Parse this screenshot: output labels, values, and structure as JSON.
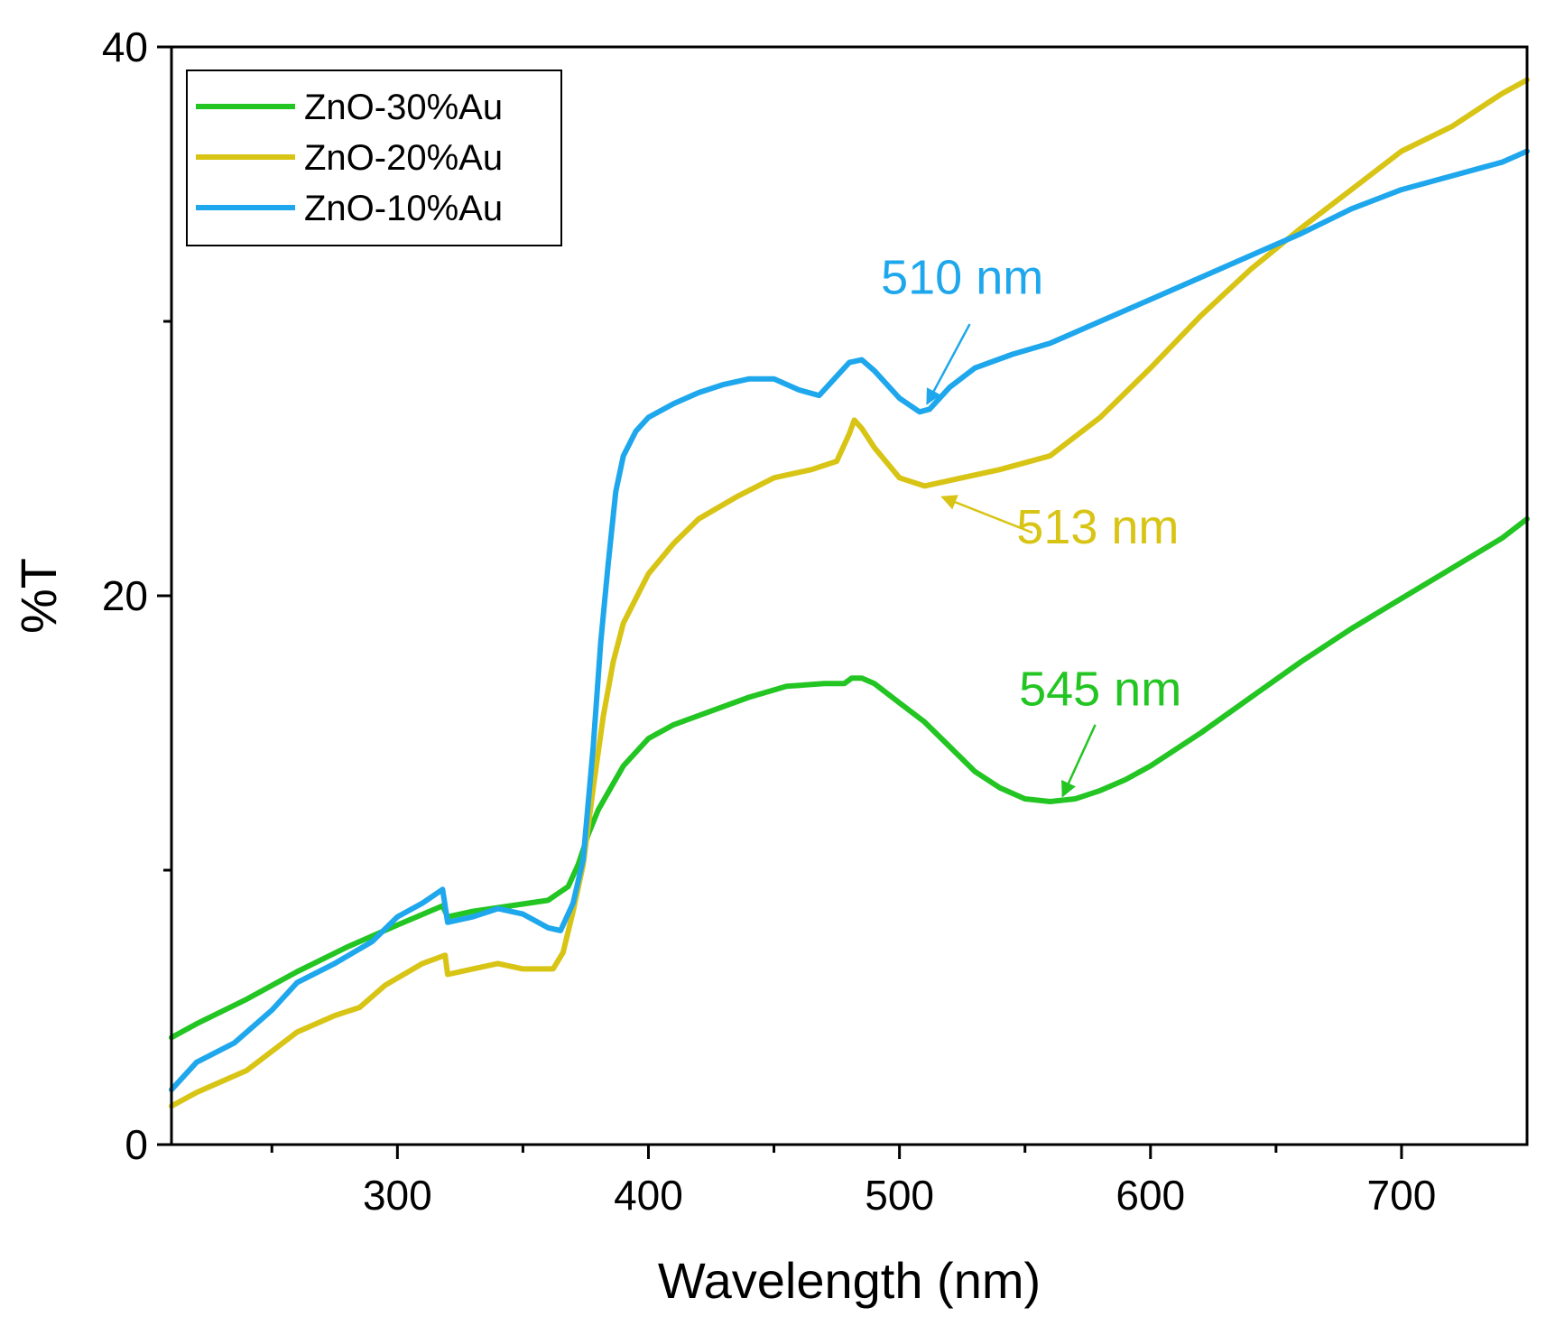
{
  "chart_data": {
    "type": "line",
    "title": "",
    "xlabel": "Wavelength (nm)",
    "ylabel": "%T",
    "xlim": [
      210,
      750
    ],
    "ylim": [
      0,
      40
    ],
    "x_ticks": [
      300,
      400,
      500,
      600,
      700
    ],
    "x_tick_labels": [
      "300",
      "400",
      "500",
      "600",
      "700"
    ],
    "x_minor_ticks": [
      250,
      350,
      450,
      550,
      650
    ],
    "y_ticks": [
      0,
      20,
      40
    ],
    "y_tick_labels": [
      "0",
      "20",
      "40"
    ],
    "y_minor_ticks": [
      10,
      30
    ],
    "grid": false,
    "legend_position": "top-left",
    "series": [
      {
        "name": "ZnO-30%Au",
        "color": "#22c522",
        "points": [
          [
            210,
            3.9
          ],
          [
            220,
            4.4
          ],
          [
            240,
            5.3
          ],
          [
            260,
            6.3
          ],
          [
            280,
            7.2
          ],
          [
            300,
            8.0
          ],
          [
            318,
            8.7
          ],
          [
            320,
            8.3
          ],
          [
            330,
            8.5
          ],
          [
            345,
            8.7
          ],
          [
            360,
            8.9
          ],
          [
            368,
            9.4
          ],
          [
            372,
            10.2
          ],
          [
            376,
            11.3
          ],
          [
            380,
            12.2
          ],
          [
            385,
            13.0
          ],
          [
            390,
            13.8
          ],
          [
            400,
            14.8
          ],
          [
            410,
            15.3
          ],
          [
            425,
            15.8
          ],
          [
            440,
            16.3
          ],
          [
            455,
            16.7
          ],
          [
            470,
            16.8
          ],
          [
            478,
            16.8
          ],
          [
            481,
            17.0
          ],
          [
            485,
            17.0
          ],
          [
            490,
            16.8
          ],
          [
            500,
            16.1
          ],
          [
            510,
            15.4
          ],
          [
            520,
            14.5
          ],
          [
            530,
            13.6
          ],
          [
            540,
            13.0
          ],
          [
            550,
            12.6
          ],
          [
            560,
            12.5
          ],
          [
            570,
            12.6
          ],
          [
            580,
            12.9
          ],
          [
            590,
            13.3
          ],
          [
            600,
            13.8
          ],
          [
            620,
            15.0
          ],
          [
            640,
            16.3
          ],
          [
            660,
            17.6
          ],
          [
            680,
            18.8
          ],
          [
            700,
            19.9
          ],
          [
            720,
            21.0
          ],
          [
            740,
            22.1
          ],
          [
            750,
            22.8
          ]
        ]
      },
      {
        "name": "ZnO-20%Au",
        "color": "#d8c414",
        "points": [
          [
            210,
            1.4
          ],
          [
            220,
            1.9
          ],
          [
            240,
            2.7
          ],
          [
            250,
            3.4
          ],
          [
            260,
            4.1
          ],
          [
            275,
            4.7
          ],
          [
            285,
            5.0
          ],
          [
            295,
            5.8
          ],
          [
            310,
            6.6
          ],
          [
            319,
            6.9
          ],
          [
            320,
            6.2
          ],
          [
            330,
            6.4
          ],
          [
            340,
            6.6
          ],
          [
            350,
            6.4
          ],
          [
            362,
            6.4
          ],
          [
            366,
            7.0
          ],
          [
            370,
            8.5
          ],
          [
            374,
            10.2
          ],
          [
            378,
            13.0
          ],
          [
            382,
            15.6
          ],
          [
            386,
            17.6
          ],
          [
            390,
            19.0
          ],
          [
            400,
            20.8
          ],
          [
            410,
            21.9
          ],
          [
            420,
            22.8
          ],
          [
            435,
            23.6
          ],
          [
            450,
            24.3
          ],
          [
            465,
            24.6
          ],
          [
            475,
            24.9
          ],
          [
            480,
            25.9
          ],
          [
            482,
            26.4
          ],
          [
            485,
            26.1
          ],
          [
            490,
            25.4
          ],
          [
            500,
            24.3
          ],
          [
            510,
            24.0
          ],
          [
            520,
            24.2
          ],
          [
            540,
            24.6
          ],
          [
            560,
            25.1
          ],
          [
            580,
            26.5
          ],
          [
            600,
            28.3
          ],
          [
            620,
            30.2
          ],
          [
            640,
            31.9
          ],
          [
            660,
            33.4
          ],
          [
            680,
            34.8
          ],
          [
            700,
            36.2
          ],
          [
            720,
            37.1
          ],
          [
            740,
            38.3
          ],
          [
            750,
            38.8
          ]
        ]
      },
      {
        "name": "ZnO-10%Au",
        "color": "#1ea7ec",
        "points": [
          [
            210,
            2.0
          ],
          [
            220,
            3.0
          ],
          [
            235,
            3.7
          ],
          [
            250,
            4.9
          ],
          [
            260,
            5.9
          ],
          [
            275,
            6.6
          ],
          [
            290,
            7.4
          ],
          [
            300,
            8.3
          ],
          [
            310,
            8.8
          ],
          [
            318,
            9.3
          ],
          [
            320,
            8.1
          ],
          [
            330,
            8.3
          ],
          [
            340,
            8.6
          ],
          [
            350,
            8.4
          ],
          [
            360,
            7.9
          ],
          [
            365,
            7.8
          ],
          [
            370,
            8.8
          ],
          [
            374,
            10.4
          ],
          [
            378,
            14.5
          ],
          [
            381,
            18.3
          ],
          [
            384,
            21.2
          ],
          [
            387,
            23.8
          ],
          [
            390,
            25.1
          ],
          [
            395,
            26.0
          ],
          [
            400,
            26.5
          ],
          [
            410,
            27.0
          ],
          [
            420,
            27.4
          ],
          [
            430,
            27.7
          ],
          [
            440,
            27.9
          ],
          [
            450,
            27.9
          ],
          [
            460,
            27.5
          ],
          [
            468,
            27.3
          ],
          [
            475,
            28.0
          ],
          [
            480,
            28.5
          ],
          [
            485,
            28.6
          ],
          [
            490,
            28.2
          ],
          [
            500,
            27.2
          ],
          [
            508,
            26.7
          ],
          [
            512,
            26.8
          ],
          [
            520,
            27.6
          ],
          [
            530,
            28.3
          ],
          [
            545,
            28.8
          ],
          [
            560,
            29.2
          ],
          [
            580,
            30.0
          ],
          [
            600,
            30.8
          ],
          [
            620,
            31.6
          ],
          [
            640,
            32.4
          ],
          [
            660,
            33.2
          ],
          [
            680,
            34.1
          ],
          [
            700,
            34.8
          ],
          [
            720,
            35.3
          ],
          [
            740,
            35.8
          ],
          [
            750,
            36.2
          ]
        ]
      }
    ],
    "annotations": [
      {
        "text": "510 nm",
        "color": "#1ea7ec",
        "label_at": [
          525,
          31.0
        ],
        "arrow_from": [
          528,
          29.9
        ],
        "arrow_to": [
          511,
          27.0
        ]
      },
      {
        "text": "513 nm",
        "color": "#d8c414",
        "label_at": [
          579,
          21.9
        ],
        "arrow_from": [
          553,
          22.3
        ],
        "arrow_to": [
          517,
          23.6
        ]
      },
      {
        "text": "545 nm",
        "color": "#22c522",
        "label_at": [
          580,
          16.0
        ],
        "arrow_from": [
          578,
          15.3
        ],
        "arrow_to": [
          565,
          12.7
        ]
      }
    ]
  }
}
